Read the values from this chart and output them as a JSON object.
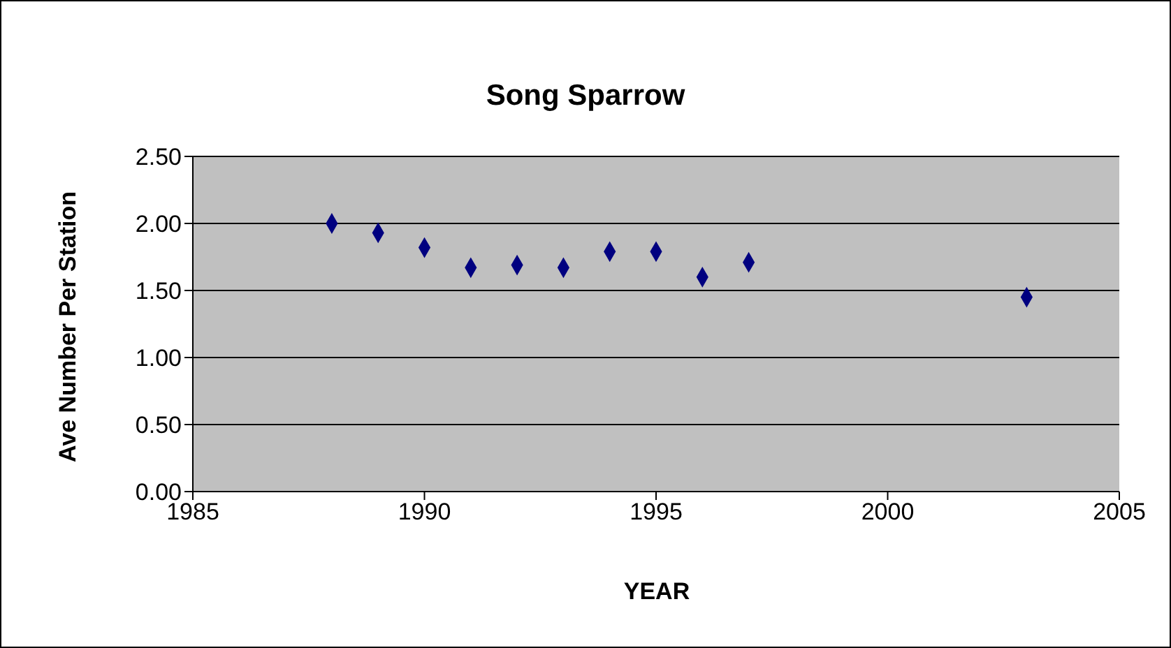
{
  "chart_data": {
    "type": "scatter",
    "title": "Song Sparrow",
    "xlabel": "YEAR",
    "ylabel": "Ave Number Per Station",
    "x": [
      1988,
      1989,
      1990,
      1991,
      1992,
      1993,
      1994,
      1995,
      1996,
      1997,
      2003
    ],
    "series": [
      {
        "color": "#000080",
        "values": [
          2.0,
          1.93,
          1.82,
          1.67,
          1.69,
          1.67,
          1.79,
          1.79,
          1.6,
          1.71,
          1.45
        ]
      }
    ],
    "xlim": [
      1985,
      2005
    ],
    "xticks": [
      1985,
      1990,
      1995,
      2000,
      2005
    ],
    "ylim": [
      0,
      2.5
    ],
    "yticks": [
      {
        "value": 0,
        "label": "0.00"
      },
      {
        "value": 0.5,
        "label": "0.50"
      },
      {
        "value": 1,
        "label": "1.00"
      },
      {
        "value": 1.5,
        "label": "1.50"
      },
      {
        "value": 2,
        "label": "2.00"
      },
      {
        "value": 2.5,
        "label": "2.50"
      }
    ],
    "grid": "y",
    "marker": "diamond"
  }
}
